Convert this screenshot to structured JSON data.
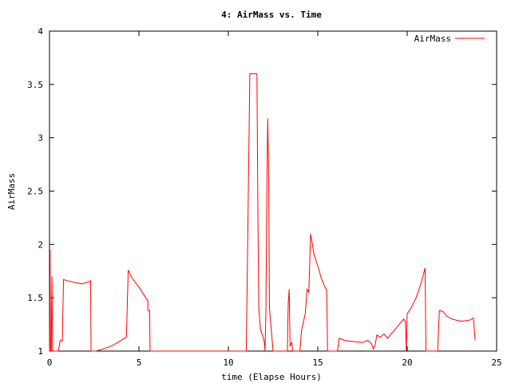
{
  "chart_data": {
    "type": "line",
    "title": "4: AirMass vs. Time",
    "xlabel": "time (Elapse Hours)",
    "ylabel": "AirMass",
    "xlim": [
      0,
      25
    ],
    "ylim": [
      1,
      4
    ],
    "xticks": [
      "0",
      "5",
      "10",
      "15",
      "20",
      "25"
    ],
    "yticks": [
      "1",
      "1.5",
      "2",
      "2.5",
      "3",
      "3.5",
      "4"
    ],
    "grid": false,
    "legend_position": "top-right",
    "series": [
      {
        "name": "AirMass",
        "color": "#ff0000",
        "points": [
          [
            0.0,
            1.0
          ],
          [
            0.03,
            1.95
          ],
          [
            0.06,
            1.0
          ],
          [
            0.1,
            1.0
          ],
          [
            0.14,
            1.7
          ],
          [
            0.18,
            1.0
          ],
          [
            0.5,
            1.0
          ],
          [
            0.6,
            1.1
          ],
          [
            0.72,
            1.1
          ],
          [
            0.78,
            1.67
          ],
          [
            1.0,
            1.66
          ],
          [
            1.5,
            1.64
          ],
          [
            1.8,
            1.63
          ],
          [
            2.2,
            1.65
          ],
          [
            2.3,
            1.66
          ],
          [
            2.32,
            1.0
          ],
          [
            2.6,
            1.0
          ],
          [
            3.0,
            1.02
          ],
          [
            3.5,
            1.05
          ],
          [
            4.0,
            1.1
          ],
          [
            4.3,
            1.13
          ],
          [
            4.4,
            1.76
          ],
          [
            4.6,
            1.69
          ],
          [
            5.0,
            1.6
          ],
          [
            5.5,
            1.47
          ],
          [
            5.5,
            1.47
          ],
          [
            5.5,
            1.38
          ],
          [
            5.6,
            1.38
          ],
          [
            5.62,
            1.0
          ],
          [
            11.0,
            1.0
          ],
          [
            11.05,
            1.6
          ],
          [
            11.2,
            3.6
          ],
          [
            11.3,
            3.6
          ],
          [
            11.6,
            3.6
          ],
          [
            11.65,
            2.3
          ],
          [
            11.7,
            1.4
          ],
          [
            11.8,
            1.2
          ],
          [
            11.9,
            1.15
          ],
          [
            12.0,
            1.1
          ],
          [
            12.05,
            1.0
          ],
          [
            12.1,
            1.35
          ],
          [
            12.15,
            2.5
          ],
          [
            12.2,
            3.18
          ],
          [
            12.25,
            2.7
          ],
          [
            12.3,
            1.4
          ],
          [
            12.4,
            1.2
          ],
          [
            12.5,
            1.0
          ],
          [
            13.3,
            1.0
          ],
          [
            13.35,
            1.45
          ],
          [
            13.4,
            1.58
          ],
          [
            13.45,
            1.05
          ],
          [
            13.55,
            1.08
          ],
          [
            13.6,
            1.0
          ],
          [
            14.0,
            1.0
          ],
          [
            14.1,
            1.2
          ],
          [
            14.3,
            1.35
          ],
          [
            14.4,
            1.58
          ],
          [
            14.5,
            1.55
          ],
          [
            14.6,
            2.1
          ],
          [
            14.8,
            1.9
          ],
          [
            15.0,
            1.8
          ],
          [
            15.2,
            1.68
          ],
          [
            15.4,
            1.6
          ],
          [
            15.5,
            1.57
          ],
          [
            15.55,
            1.0
          ],
          [
            16.1,
            1.0
          ],
          [
            16.2,
            1.12
          ],
          [
            16.5,
            1.1
          ],
          [
            17.0,
            1.09
          ],
          [
            17.5,
            1.08
          ],
          [
            17.8,
            1.1
          ],
          [
            18.0,
            1.07
          ],
          [
            18.1,
            1.02
          ],
          [
            18.2,
            1.05
          ],
          [
            18.3,
            1.15
          ],
          [
            18.5,
            1.13
          ],
          [
            18.7,
            1.16
          ],
          [
            18.9,
            1.12
          ],
          [
            19.2,
            1.18
          ],
          [
            19.5,
            1.24
          ],
          [
            19.8,
            1.3
          ],
          [
            19.9,
            1.28
          ],
          [
            19.95,
            1.0
          ],
          [
            20.0,
            1.35
          ],
          [
            20.2,
            1.4
          ],
          [
            20.5,
            1.5
          ],
          [
            20.8,
            1.65
          ],
          [
            21.0,
            1.78
          ],
          [
            21.05,
            1.0
          ],
          [
            21.7,
            1.0
          ],
          [
            21.8,
            1.38
          ],
          [
            22.0,
            1.37
          ],
          [
            22.2,
            1.33
          ],
          [
            22.5,
            1.3
          ],
          [
            23.0,
            1.28
          ],
          [
            23.5,
            1.29
          ],
          [
            23.7,
            1.31
          ],
          [
            23.8,
            1.1
          ]
        ]
      }
    ]
  }
}
